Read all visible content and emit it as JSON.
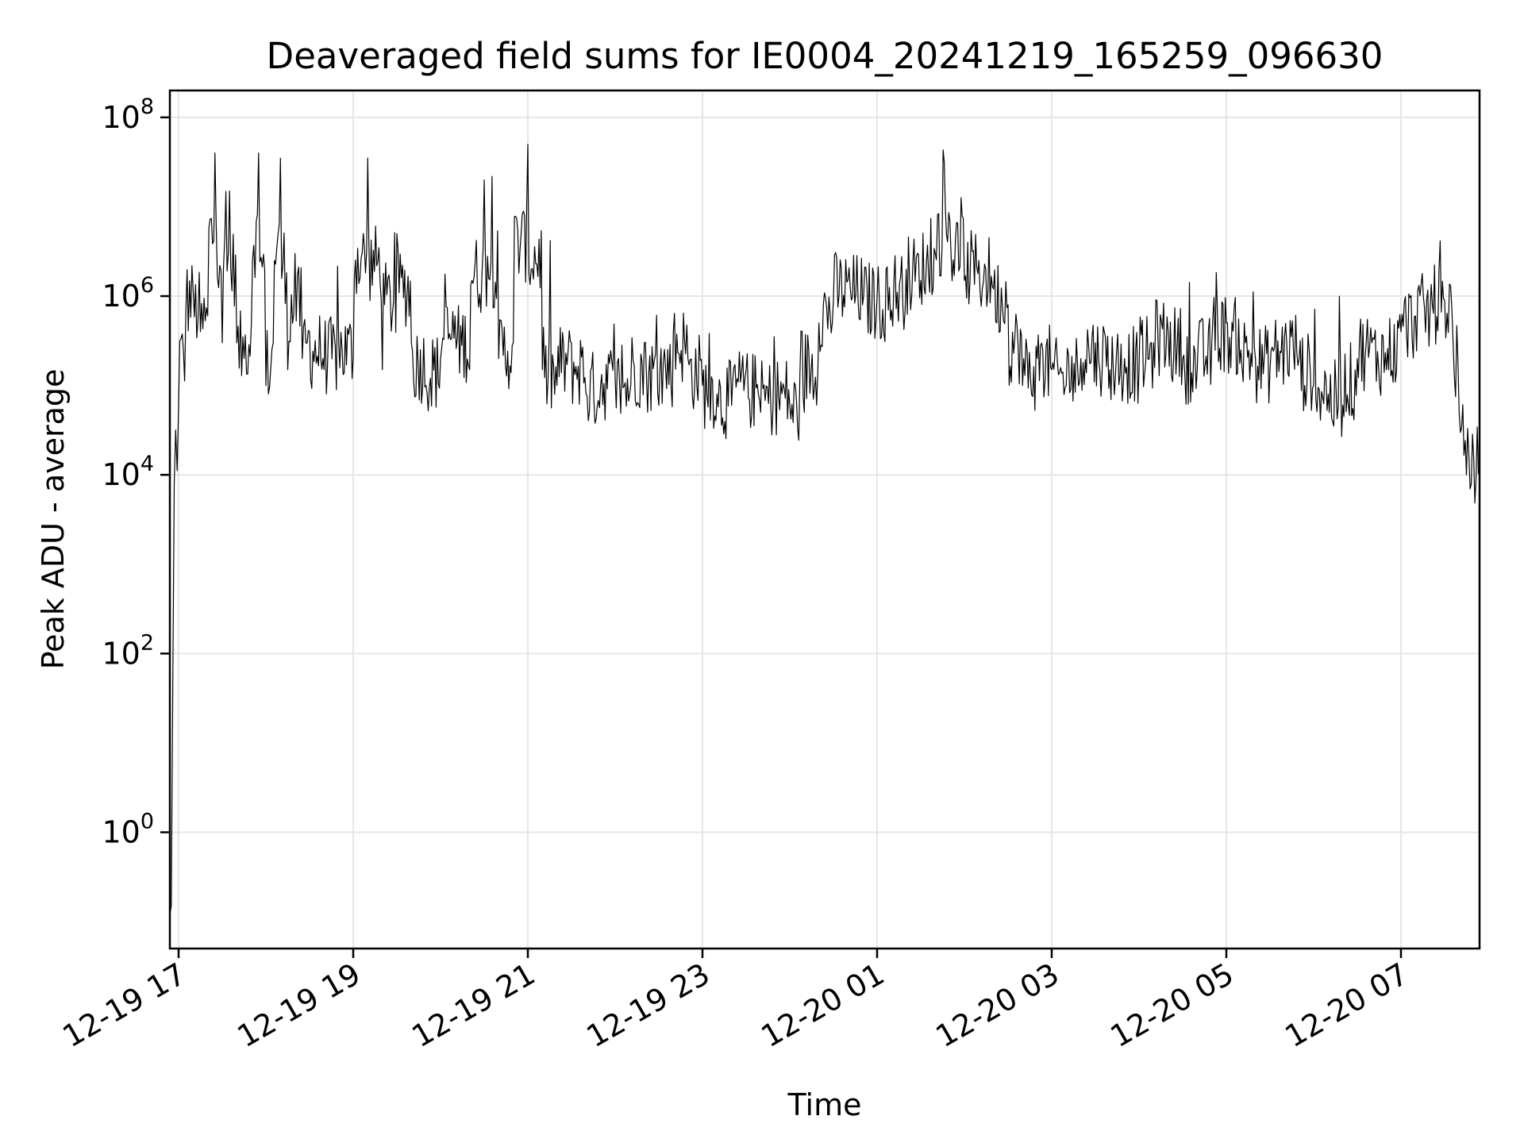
{
  "chart_data": {
    "type": "line",
    "title": "Deaveraged field sums for IE0004_20241219_165259_096630",
    "xlabel": "Time",
    "ylabel": "Peak ADU - average",
    "yscale": "log",
    "grid": true,
    "xlim": [
      "2024-12-19 16:54",
      "2024-12-20 07:54"
    ],
    "ylim": [
      0.05,
      200000000
    ],
    "xticks": [
      "12-19 17",
      "12-19 19",
      "12-19 21",
      "12-19 23",
      "12-20 01",
      "12-20 03",
      "12-20 05",
      "12-20 07"
    ],
    "yticks": [
      {
        "base": "10",
        "exp": "0",
        "value": 1
      },
      {
        "base": "10",
        "exp": "2",
        "value": 100
      },
      {
        "base": "10",
        "exp": "4",
        "value": 10000
      },
      {
        "base": "10",
        "exp": "6",
        "value": 1000000
      },
      {
        "base": "10",
        "exp": "8",
        "value": 100000000
      }
    ],
    "series": [
      {
        "color": "#000000",
        "x": [
          "2024-12-19 16:53",
          "2024-12-19 16:55",
          "2024-12-19 16:57",
          "2024-12-19 17:00",
          "2024-12-19 17:05",
          "2024-12-19 17:10",
          "2024-12-19 17:15",
          "2024-12-19 17:20",
          "2024-12-19 17:25",
          "2024-12-19 17:30",
          "2024-12-19 17:35",
          "2024-12-19 17:40",
          "2024-12-19 17:45",
          "2024-12-19 17:50",
          "2024-12-19 17:55",
          "2024-12-19 18:00",
          "2024-12-19 18:05",
          "2024-12-19 18:10",
          "2024-12-19 18:15",
          "2024-12-19 18:20",
          "2024-12-19 18:25",
          "2024-12-19 18:30",
          "2024-12-19 18:40",
          "2024-12-19 18:50",
          "2024-12-19 19:00",
          "2024-12-19 19:10",
          "2024-12-19 19:20",
          "2024-12-19 19:30",
          "2024-12-19 19:40",
          "2024-12-19 19:50",
          "2024-12-19 20:00",
          "2024-12-19 20:10",
          "2024-12-19 20:20",
          "2024-12-19 20:30",
          "2024-12-19 20:40",
          "2024-12-19 20:50",
          "2024-12-19 21:00",
          "2024-12-19 21:10",
          "2024-12-19 21:20",
          "2024-12-19 21:30",
          "2024-12-19 21:40",
          "2024-12-19 21:50",
          "2024-12-19 22:00",
          "2024-12-19 22:10",
          "2024-12-19 22:20",
          "2024-12-19 22:30",
          "2024-12-19 22:40",
          "2024-12-19 22:50",
          "2024-12-19 23:00",
          "2024-12-19 23:10",
          "2024-12-19 23:20",
          "2024-12-19 23:30",
          "2024-12-19 23:40",
          "2024-12-19 23:50",
          "2024-12-20 00:00",
          "2024-12-20 00:10",
          "2024-12-20 00:20",
          "2024-12-20 00:30",
          "2024-12-20 00:40",
          "2024-12-20 00:50",
          "2024-12-20 01:00",
          "2024-12-20 01:10",
          "2024-12-20 01:20",
          "2024-12-20 01:30",
          "2024-12-20 01:40",
          "2024-12-20 01:50",
          "2024-12-20 02:00",
          "2024-12-20 02:10",
          "2024-12-20 02:20",
          "2024-12-20 02:30",
          "2024-12-20 02:40",
          "2024-12-20 02:50",
          "2024-12-20 03:00",
          "2024-12-20 03:10",
          "2024-12-20 03:20",
          "2024-12-20 03:30",
          "2024-12-20 03:40",
          "2024-12-20 03:50",
          "2024-12-20 04:00",
          "2024-12-20 04:10",
          "2024-12-20 04:20",
          "2024-12-20 04:30",
          "2024-12-20 04:40",
          "2024-12-20 04:50",
          "2024-12-20 05:00",
          "2024-12-20 05:10",
          "2024-12-20 05:20",
          "2024-12-20 05:30",
          "2024-12-20 05:40",
          "2024-12-20 05:50",
          "2024-12-20 06:00",
          "2024-12-20 06:10",
          "2024-12-20 06:20",
          "2024-12-20 06:30",
          "2024-12-20 06:40",
          "2024-12-20 06:50",
          "2024-12-20 07:00",
          "2024-12-20 07:10",
          "2024-12-20 07:20",
          "2024-12-20 07:30",
          "2024-12-20 07:35",
          "2024-12-20 07:40",
          "2024-12-20 07:45",
          "2024-12-20 07:50",
          "2024-12-20 07:54"
        ],
        "y": [
          0.05,
          0.15,
          8000,
          60000,
          700000,
          1200000,
          400000,
          600000,
          40000000,
          300000,
          15000000,
          300000,
          200000,
          500000,
          40000000,
          100000,
          300000,
          35000000,
          150000,
          3000000,
          200000,
          400000,
          150000,
          300000,
          200000,
          35000000,
          150000,
          5000000,
          300000,
          100000,
          200000,
          600000,
          150000,
          20000000,
          200000,
          300000,
          50000000,
          150000,
          100000,
          300000,
          80000,
          100000,
          120000,
          80000,
          300000,
          60000,
          400000,
          200000,
          100000,
          80000,
          60000,
          150000,
          50000,
          100000,
          60000,
          50000,
          500000,
          900000,
          1500000,
          800000,
          1000000,
          700000,
          2000000,
          1500000,
          3000000,
          7000000,
          1500000,
          2500000,
          1200000,
          800000,
          100000,
          200000,
          150000,
          100000,
          200000,
          300000,
          150000,
          200000,
          150000,
          300000,
          400000,
          200000,
          150000,
          300000,
          500000,
          250000,
          200000,
          150000,
          350000,
          200000,
          100000,
          80000,
          60000,
          200000,
          300000,
          150000,
          400000,
          600000,
          700000,
          900000,
          700000,
          50000,
          10000,
          15000,
          12000
        ]
      }
    ]
  }
}
